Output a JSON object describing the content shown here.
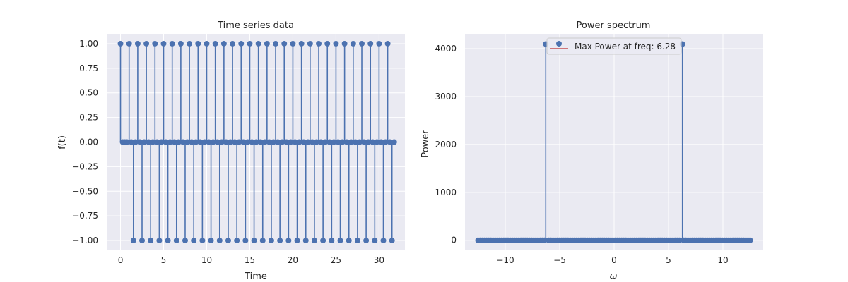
{
  "chart_data": [
    {
      "type": "stem",
      "title": "Time series data",
      "xlabel": "Time",
      "ylabel": "f(t)",
      "xlim": [
        -1.6,
        33.0
      ],
      "ylim": [
        -1.1,
        1.1
      ],
      "xticks": [
        0,
        5,
        10,
        15,
        20,
        25,
        30
      ],
      "xtick_labels": [
        "0",
        "5",
        "10",
        "15",
        "20",
        "25",
        "30"
      ],
      "yticks": [
        -1.0,
        -0.75,
        -0.5,
        -0.25,
        0.0,
        0.25,
        0.5,
        0.75,
        1.0
      ],
      "ytick_labels": [
        "−1.00",
        "−0.75",
        "−0.50",
        "−0.25",
        "0.00",
        "0.25",
        "0.50",
        "0.75",
        "1.00"
      ],
      "grid": true,
      "series": [
        {
          "x": [
            0.0,
            0.25,
            0.5,
            0.75,
            1.0,
            1.25,
            1.5,
            1.75,
            2.0,
            2.25,
            2.5,
            2.75,
            3.0,
            3.25,
            3.5,
            3.75,
            4.0,
            4.25,
            4.5,
            4.75,
            5.0,
            5.25,
            5.5,
            5.75,
            6.0,
            6.25,
            6.5,
            6.75,
            7.0,
            7.25,
            7.5,
            7.75,
            8.0,
            8.25,
            8.5,
            8.75,
            9.0,
            9.25,
            9.5,
            9.75,
            10.0,
            10.25,
            10.5,
            10.75,
            11.0,
            11.25,
            11.5,
            11.75,
            12.0,
            12.25,
            12.5,
            12.75,
            13.0,
            13.25,
            13.5,
            13.75,
            14.0,
            14.25,
            14.5,
            14.75,
            15.0,
            15.25,
            15.5,
            15.75,
            16.0,
            16.25,
            16.5,
            16.75,
            17.0,
            17.25,
            17.5,
            17.75,
            18.0,
            18.25,
            18.5,
            18.75,
            19.0,
            19.25,
            19.5,
            19.75,
            20.0,
            20.25,
            20.5,
            20.75,
            21.0,
            21.25,
            21.5,
            21.75,
            22.0,
            22.25,
            22.5,
            22.75,
            23.0,
            23.25,
            23.5,
            23.75,
            24.0,
            24.25,
            24.5,
            24.75,
            25.0,
            25.25,
            25.5,
            25.75,
            26.0,
            26.25,
            26.5,
            26.75,
            27.0,
            27.25,
            27.5,
            27.75,
            28.0,
            28.25,
            28.5,
            28.75,
            29.0,
            29.25,
            29.5,
            29.75,
            30.0,
            30.25,
            30.5,
            30.75,
            31.0,
            31.25,
            31.5,
            31.75
          ],
          "y": [
            1,
            0,
            0,
            0,
            1,
            0,
            -1,
            0,
            1,
            0,
            -1,
            0,
            1,
            0,
            -1,
            0,
            1,
            0,
            -1,
            0,
            1,
            0,
            -1,
            0,
            1,
            0,
            -1,
            0,
            1,
            0,
            -1,
            0,
            1,
            0,
            -1,
            0,
            1,
            0,
            -1,
            0,
            1,
            0,
            -1,
            0,
            1,
            0,
            -1,
            0,
            1,
            0,
            -1,
            0,
            1,
            0,
            -1,
            0,
            1,
            0,
            -1,
            0,
            1,
            0,
            -1,
            0,
            1,
            0,
            -1,
            0,
            1,
            0,
            -1,
            0,
            1,
            0,
            -1,
            0,
            1,
            0,
            -1,
            0,
            1,
            0,
            -1,
            0,
            1,
            0,
            -1,
            0,
            1,
            0,
            -1,
            0,
            1,
            0,
            -1,
            0,
            1,
            0,
            -1,
            0,
            1,
            0,
            -1,
            0,
            1,
            0,
            -1,
            0,
            1,
            0,
            -1,
            0,
            1,
            0,
            -1,
            0,
            1,
            0,
            -1,
            0,
            1,
            0,
            -1,
            0,
            1,
            0,
            -1,
            0
          ]
        }
      ]
    },
    {
      "type": "stem",
      "title": "Power spectrum",
      "xlabel": "ω",
      "ylabel": "Power",
      "xlim": [
        -13.7,
        13.7
      ],
      "ylim": [
        -210,
        4310
      ],
      "xticks": [
        -10,
        -5,
        0,
        5,
        10
      ],
      "xtick_labels": [
        "−10",
        "−5",
        "0",
        "5",
        "10"
      ],
      "yticks": [
        0,
        1000,
        2000,
        3000,
        4000
      ],
      "ytick_labels": [
        "0",
        "1000",
        "2000",
        "3000",
        "4000"
      ],
      "grid": true,
      "legend": {
        "label": "Max Power at freq: 6.28",
        "placement": "top-center"
      },
      "series": [
        {
          "x_range": [
            -12.5,
            12.5
          ],
          "n_points": 128,
          "baseline_value": 0,
          "peaks": [
            {
              "x": -6.28,
              "y": 4096
            },
            {
              "x": 6.28,
              "y": 4096
            }
          ]
        }
      ]
    }
  ],
  "colors": {
    "background": "#ffffff",
    "axes_face": "#eaeaf2",
    "grid": "#ffffff",
    "stem": "#4c72b0",
    "baseline": "#c44e52",
    "text": "#262626"
  }
}
